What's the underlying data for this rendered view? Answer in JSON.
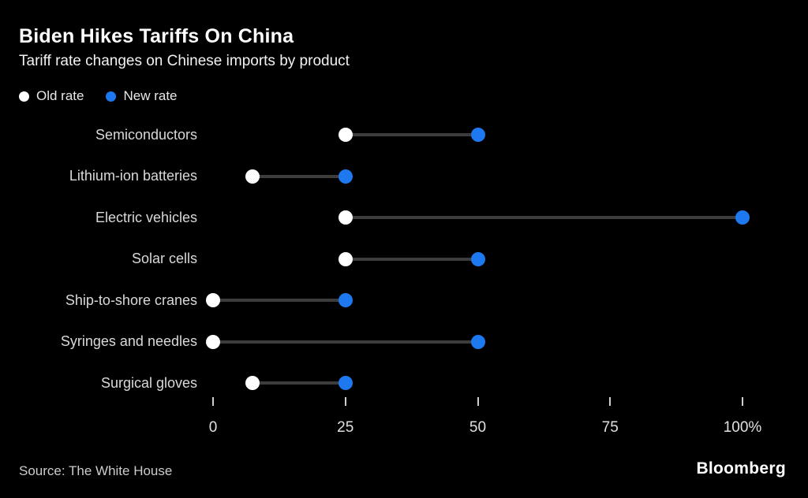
{
  "header": {
    "title": "Biden Hikes Tariffs On China",
    "subtitle": "Tariff rate changes on Chinese imports by product"
  },
  "legend": [
    {
      "label": "Old rate",
      "color": "#ffffff"
    },
    {
      "label": "New rate",
      "color": "#1e78f0"
    }
  ],
  "chart_data": {
    "type": "dumbbell",
    "title": "Biden Hikes Tariffs On China",
    "subtitle": "Tariff rate changes on Chinese imports by product",
    "categories": [
      "Semiconductors",
      "Lithium-ion batteries",
      "Electric vehicles",
      "Solar cells",
      "Ship-to-shore cranes",
      "Syringes and needles",
      "Surgical gloves"
    ],
    "series": [
      {
        "name": "Old rate",
        "color": "#ffffff",
        "values": [
          25,
          7.5,
          25,
          25,
          0,
          0,
          7.5
        ]
      },
      {
        "name": "New rate",
        "color": "#1e78f0",
        "values": [
          50,
          25,
          100,
          50,
          25,
          50,
          25
        ]
      }
    ],
    "xlabel": "",
    "ylabel": "",
    "xlim": [
      0,
      100
    ],
    "x_ticks": [
      {
        "value": 0,
        "label": "0"
      },
      {
        "value": 25,
        "label": "25"
      },
      {
        "value": 50,
        "label": "50"
      },
      {
        "value": 75,
        "label": "75"
      },
      {
        "value": 100,
        "label": "100%"
      }
    ],
    "grid": false,
    "legend_position": "top-left",
    "connector_color": "#3d3d3d",
    "background_color": "#000000"
  },
  "footer": {
    "source": "Source: The White House",
    "logo": "Bloomberg"
  }
}
